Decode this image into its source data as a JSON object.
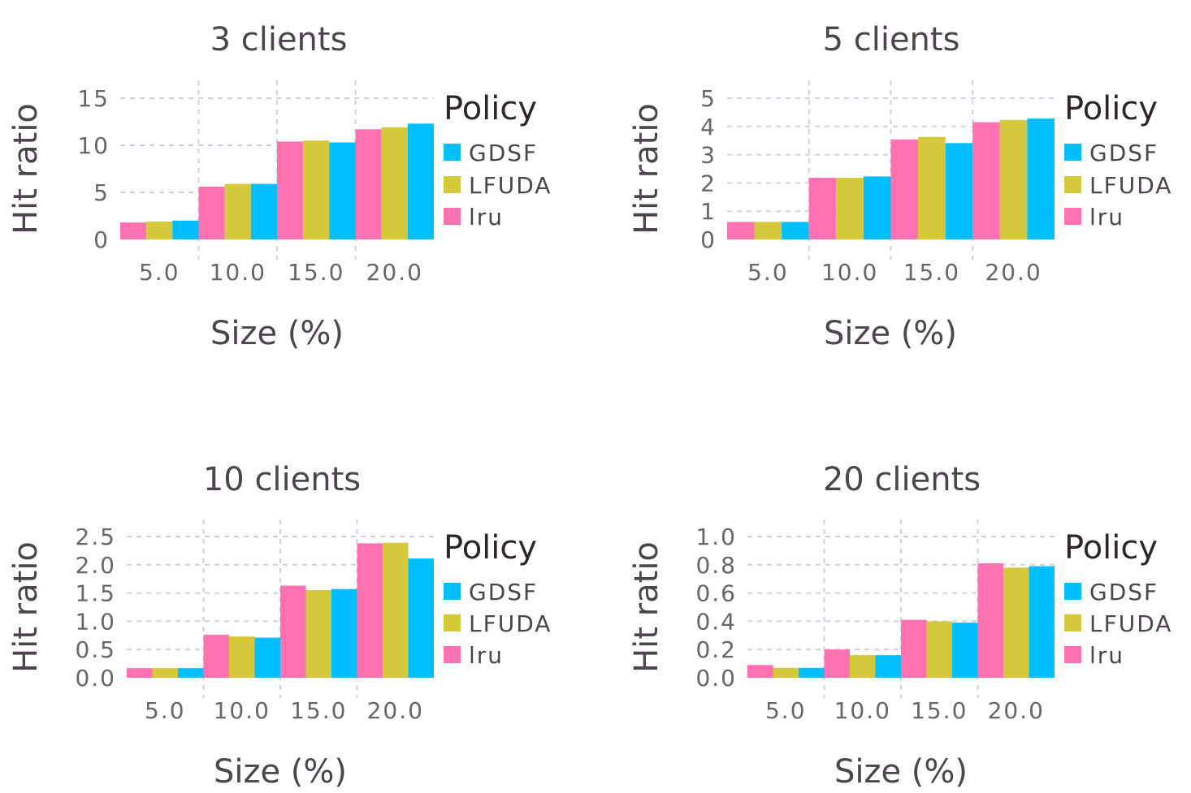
{
  "legend": {
    "title": "Policy",
    "entries": [
      {
        "label": "GDSF",
        "color": "#00bfff"
      },
      {
        "label": "LFUDA",
        "color": "#d4c83b"
      },
      {
        "label": "lru",
        "color": "#ff71b0"
      }
    ]
  },
  "series_order": [
    "lru",
    "LFUDA",
    "GDSF"
  ],
  "chart_data": [
    {
      "type": "bar",
      "title": "3 clients",
      "xlabel": "Size (%)",
      "ylabel": "Hit ratio",
      "categories": [
        "5.0",
        "10.0",
        "15.0",
        "20.0"
      ],
      "ylim": [
        0,
        15
      ],
      "yticks": [
        "0",
        "5",
        "10",
        "15"
      ],
      "ytick_values": [
        0,
        5,
        10,
        15
      ],
      "grid": true,
      "legend_position": "right",
      "series": [
        {
          "name": "lru",
          "values": [
            1.8,
            5.6,
            10.4,
            11.7
          ]
        },
        {
          "name": "LFUDA",
          "values": [
            1.9,
            5.9,
            10.5,
            11.9
          ]
        },
        {
          "name": "GDSF",
          "values": [
            2.0,
            5.9,
            10.3,
            12.3
          ]
        }
      ]
    },
    {
      "type": "bar",
      "title": "5 clients",
      "xlabel": "Size (%)",
      "ylabel": "Hit ratio",
      "categories": [
        "5.0",
        "10.0",
        "15.0",
        "20.0"
      ],
      "ylim": [
        0,
        5
      ],
      "yticks": [
        "0",
        "1",
        "2",
        "3",
        "4",
        "5"
      ],
      "ytick_values": [
        0,
        1,
        2,
        3,
        4,
        5
      ],
      "grid": true,
      "legend_position": "right",
      "series": [
        {
          "name": "lru",
          "values": [
            0.62,
            2.18,
            3.54,
            4.15
          ]
        },
        {
          "name": "LFUDA",
          "values": [
            0.62,
            2.18,
            3.63,
            4.23
          ]
        },
        {
          "name": "GDSF",
          "values": [
            0.62,
            2.23,
            3.41,
            4.28
          ]
        }
      ]
    },
    {
      "type": "bar",
      "title": "10 clients",
      "xlabel": "Size (%)",
      "ylabel": "Hit ratio",
      "categories": [
        "5.0",
        "10.0",
        "15.0",
        "20.0"
      ],
      "ylim": [
        0,
        2.5
      ],
      "yticks": [
        "0.0",
        "0.5",
        "1.0",
        "1.5",
        "2.0",
        "2.5"
      ],
      "ytick_values": [
        0,
        0.5,
        1.0,
        1.5,
        2.0,
        2.5
      ],
      "grid": true,
      "legend_position": "right",
      "series": [
        {
          "name": "lru",
          "values": [
            0.17,
            0.76,
            1.63,
            2.38
          ]
        },
        {
          "name": "LFUDA",
          "values": [
            0.17,
            0.73,
            1.55,
            2.39
          ]
        },
        {
          "name": "GDSF",
          "values": [
            0.17,
            0.71,
            1.57,
            2.11
          ]
        }
      ]
    },
    {
      "type": "bar",
      "title": "20 clients",
      "xlabel": "Size (%)",
      "ylabel": "Hit ratio",
      "categories": [
        "5.0",
        "10.0",
        "15.0",
        "20.0"
      ],
      "ylim": [
        0,
        1.0
      ],
      "yticks": [
        "0.0",
        "0.2",
        "0.4",
        "0.6",
        "0.8",
        "1.0"
      ],
      "ytick_values": [
        0,
        0.2,
        0.4,
        0.6,
        0.8,
        1.0
      ],
      "grid": true,
      "legend_position": "right",
      "series": [
        {
          "name": "lru",
          "values": [
            0.09,
            0.2,
            0.41,
            0.81
          ]
        },
        {
          "name": "LFUDA",
          "values": [
            0.07,
            0.16,
            0.4,
            0.78
          ]
        },
        {
          "name": "GDSF",
          "values": [
            0.07,
            0.16,
            0.39,
            0.79
          ]
        }
      ]
    }
  ]
}
